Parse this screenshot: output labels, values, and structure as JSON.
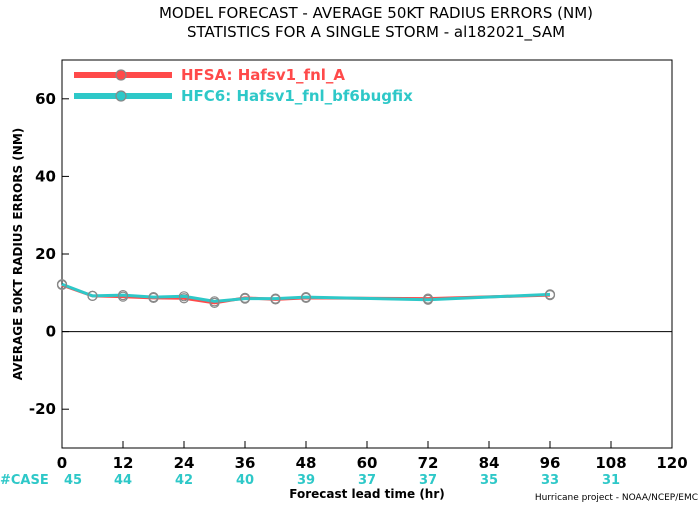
{
  "chart_data": {
    "type": "line",
    "title": "MODEL FORECAST - AVERAGE 50KT RADIUS ERRORS (NM)",
    "subtitle": "STATISTICS FOR A SINGLE STORM - al182021_SAM",
    "xlabel": "Forecast lead time (hr)",
    "ylabel": "AVERAGE 50KT RADIUS ERRORS (NM)",
    "xlim": [
      0,
      120
    ],
    "ylim": [
      -30,
      70
    ],
    "xticks": [
      0,
      12,
      24,
      36,
      48,
      60,
      72,
      84,
      96,
      108,
      120
    ],
    "yticks": [
      -20,
      0,
      20,
      40,
      60
    ],
    "zero_line": true,
    "legend_position": "top-left",
    "series": [
      {
        "name": "HFSA: Hafsv1_fnl_A",
        "color": "#ff4a4a",
        "x": [
          0,
          6,
          12,
          18,
          24,
          30,
          36,
          42,
          48,
          72,
          96
        ],
        "y": [
          12,
          9.2,
          9,
          8.7,
          8.6,
          7.4,
          8.7,
          8.3,
          8.7,
          8.5,
          9.4
        ]
      },
      {
        "name": "HFC6: Hafsv1_fnl_bf6bugfix",
        "color": "#2ec8c8",
        "x": [
          0,
          6,
          12,
          18,
          24,
          30,
          36,
          42,
          48,
          72,
          96
        ],
        "y": [
          12.2,
          9.2,
          9.4,
          8.9,
          9.1,
          7.8,
          8.5,
          8.5,
          8.9,
          8.2,
          9.6
        ]
      }
    ],
    "case_label": "#CASE",
    "case_counts": [
      {
        "x": 0,
        "label": "45"
      },
      {
        "x": 12,
        "label": "44"
      },
      {
        "x": 24,
        "label": "42"
      },
      {
        "x": 36,
        "label": "40"
      },
      {
        "x": 48,
        "label": "39"
      },
      {
        "x": 60,
        "label": "37"
      },
      {
        "x": 72,
        "label": "37"
      },
      {
        "x": 84,
        "label": "35"
      },
      {
        "x": 96,
        "label": "33"
      },
      {
        "x": 108,
        "label": "31"
      }
    ],
    "credit": "Hurricane project - NOAA/NCEP/EMC"
  }
}
